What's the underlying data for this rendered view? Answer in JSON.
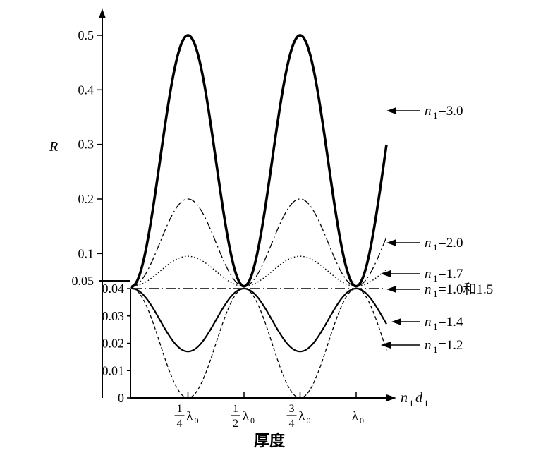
{
  "chart_data": {
    "type": "line",
    "ylabel": "R",
    "xlabel_var": "n",
    "xlabel_sub": "1",
    "xlabel_var2": "d",
    "xlabel_sub2": "1",
    "xtitle": "厚度",
    "y_upper": {
      "ticks": [
        "0.5",
        "0.4",
        "0.3",
        "0.2",
        "0.1",
        "0.05"
      ],
      "values": [
        0.5,
        0.4,
        0.3,
        0.2,
        0.1,
        0.05
      ]
    },
    "y_lower": {
      "ticks": [
        "0.04",
        "0.03",
        "0.02",
        "0.01",
        "0"
      ],
      "values": [
        0.04,
        0.03,
        0.02,
        0.01,
        0
      ]
    },
    "x_ticks": [
      {
        "num": "1",
        "den": "4",
        "sym": "λ",
        "sub": "0",
        "x": 0.25
      },
      {
        "num": "1",
        "den": "2",
        "sym": "λ",
        "sub": "0",
        "x": 0.5
      },
      {
        "num": "3",
        "den": "4",
        "sym": "λ",
        "sub": "0",
        "x": 0.75
      },
      {
        "num": "",
        "den": "",
        "sym": "λ",
        "sub": "0",
        "x": 1.0
      }
    ],
    "series": [
      {
        "n": "n",
        "sub": "1",
        "label": "=3.0",
        "peak_R": 0.5,
        "style": "solid-thick"
      },
      {
        "n": "n",
        "sub": "1",
        "label": "=2.0",
        "peak_R": 0.2,
        "style": "dashdot"
      },
      {
        "n": "n",
        "sub": "1",
        "label": "=1.7",
        "peak_R": 0.095,
        "style": "dotted"
      },
      {
        "n": "n",
        "sub": "1",
        "label": "=1.0和1.5",
        "peak_R": 0.04,
        "style": "dashdot-flat"
      },
      {
        "n": "n",
        "sub": "1",
        "label": "=1.4",
        "peak_R": 0.017,
        "style": "solid"
      },
      {
        "n": "n",
        "sub": "1",
        "label": "=1.2",
        "peak_R": 0.0,
        "style": "dashed"
      }
    ],
    "x_range": [
      0,
      1.05
    ],
    "base_R": 0.04
  }
}
